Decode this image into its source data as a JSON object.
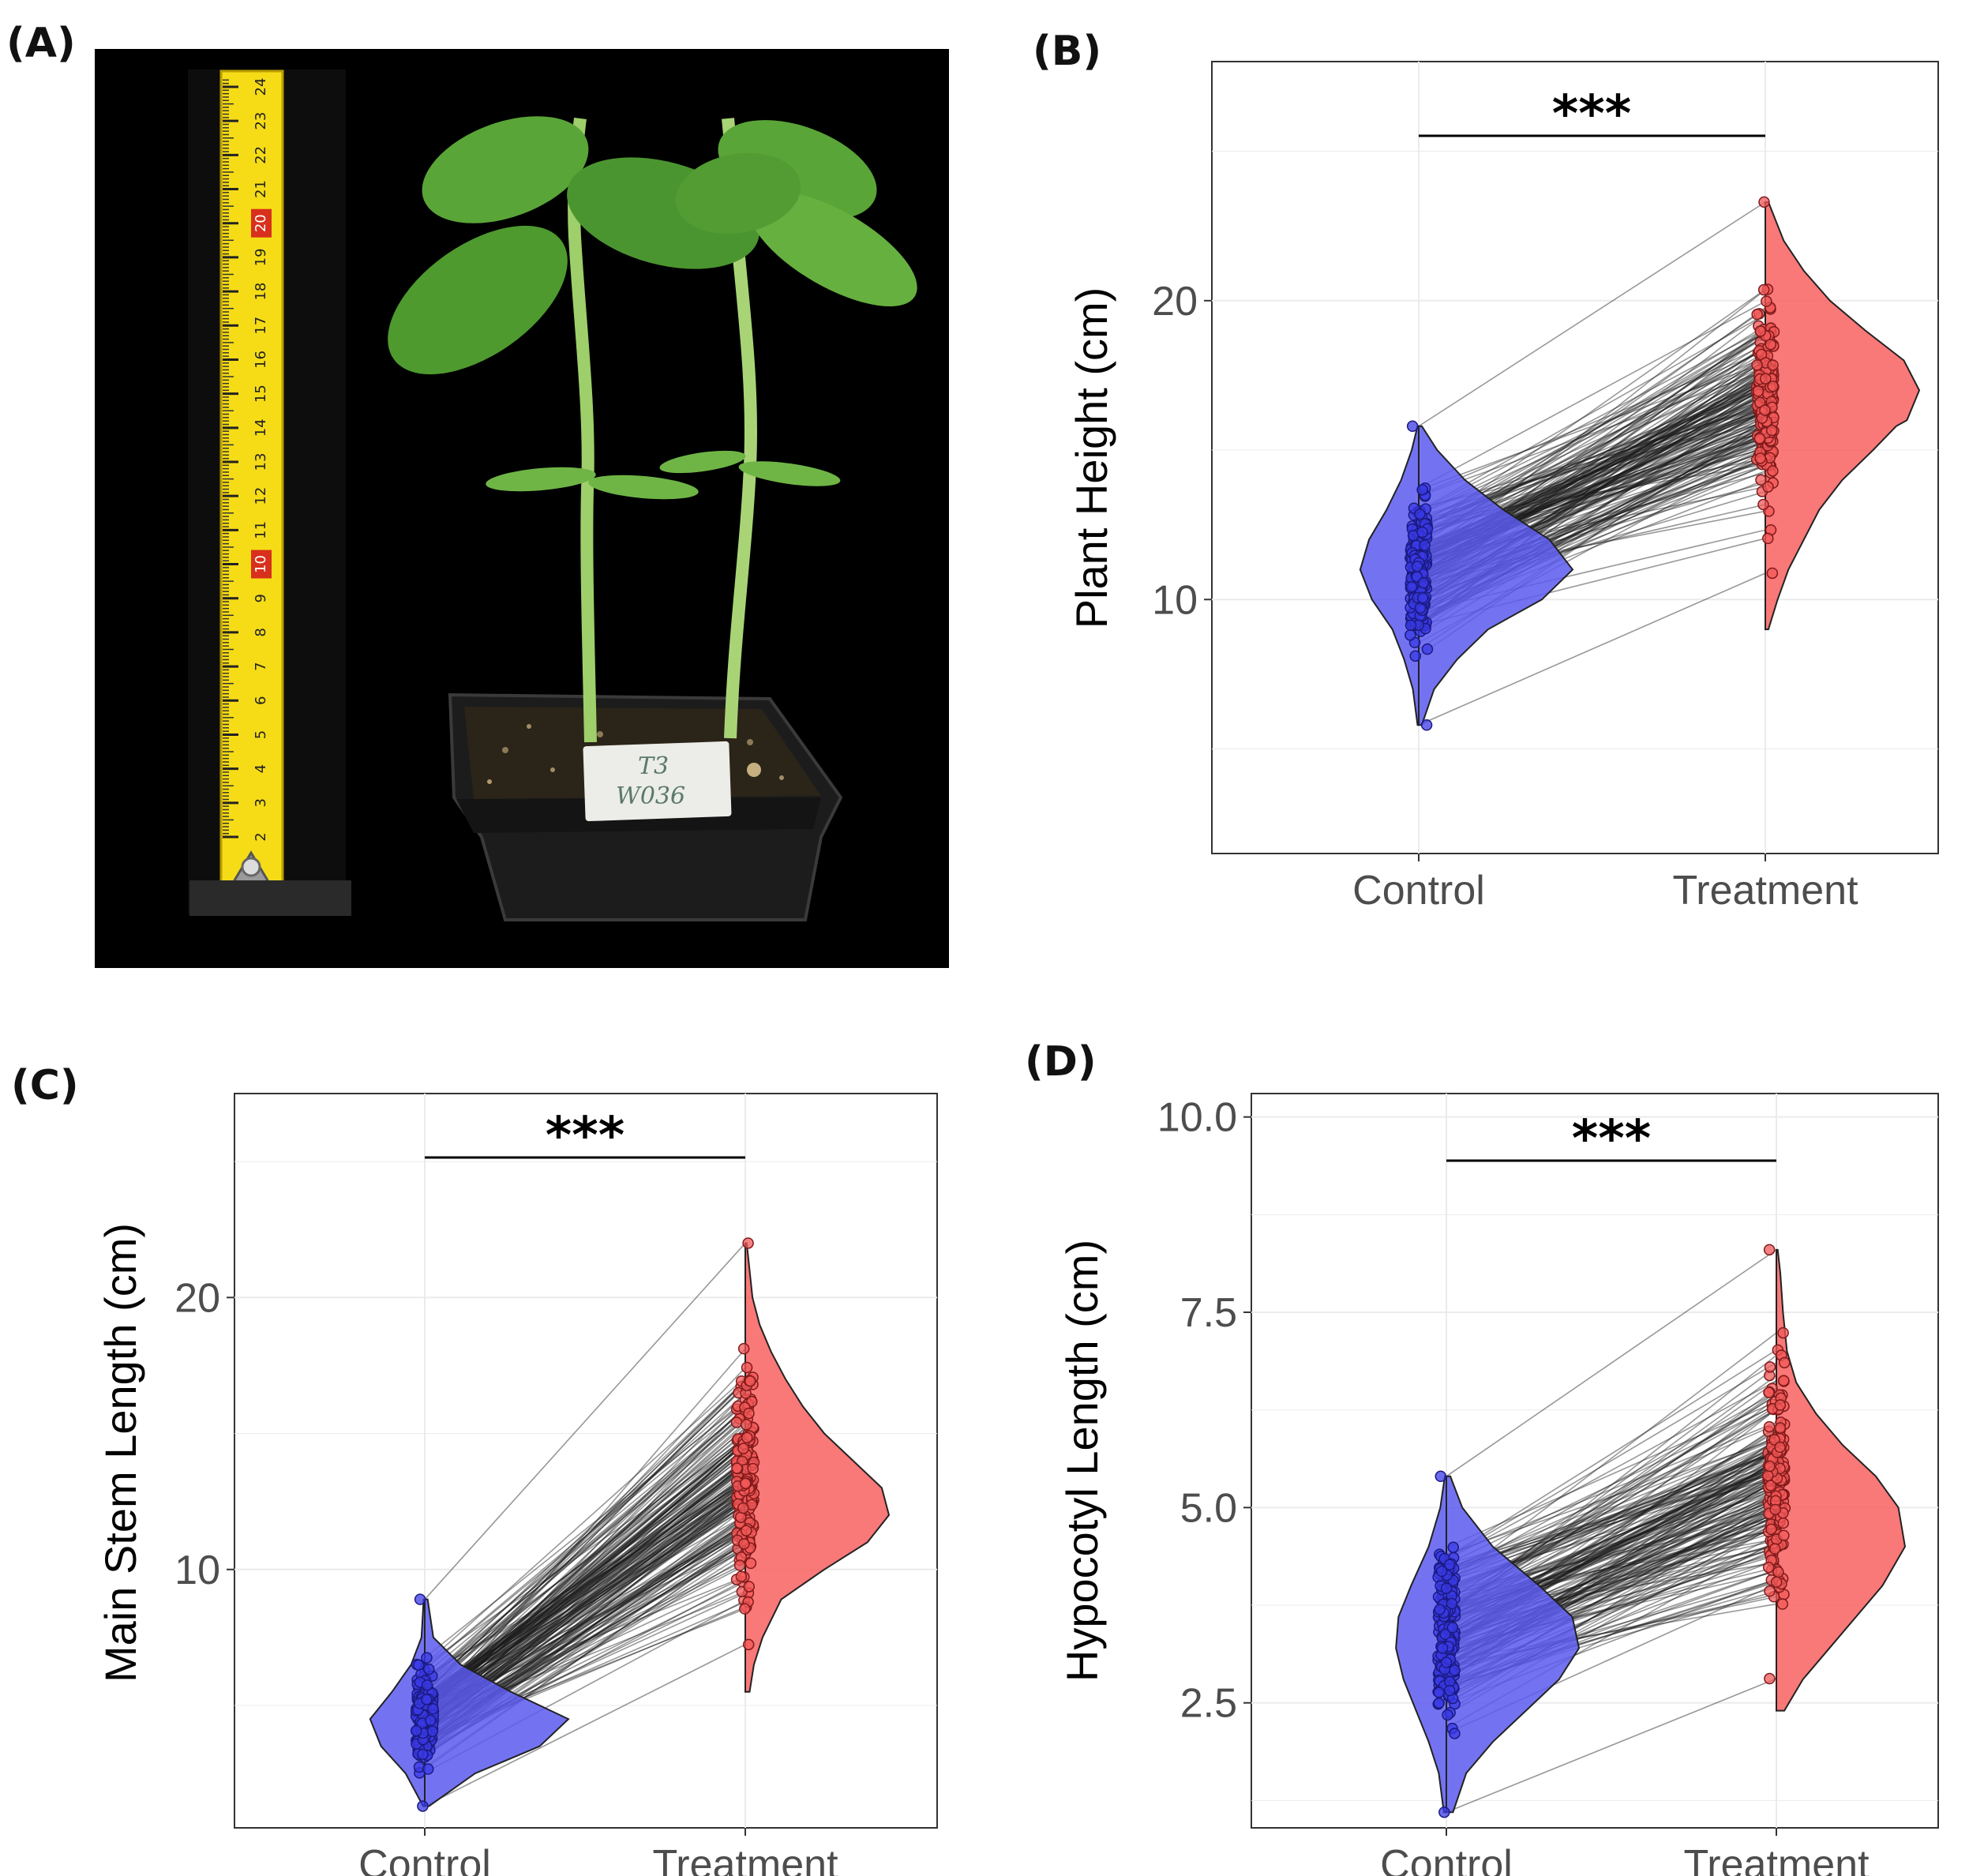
{
  "panels": {
    "a": {
      "label": "(A)"
    },
    "b": {
      "label": "(B)"
    },
    "c": {
      "label": "(C)"
    },
    "d": {
      "label": "(D)"
    }
  },
  "photo": {
    "pot_tag_line1": "T3",
    "pot_tag_line2": "W036",
    "ruler_numbers": [
      "2",
      "3",
      "4",
      "5",
      "6",
      "7",
      "8",
      "9",
      "10",
      "11",
      "12",
      "13",
      "14",
      "15",
      "16",
      "17",
      "18",
      "19",
      "20",
      "21",
      "22",
      "23",
      "24"
    ]
  },
  "colors": {
    "control": "#3a3ae6",
    "treatment": "#f25858",
    "control_fill": "#5a5af0",
    "treatment_fill": "#f86060",
    "line": "#222222"
  },
  "chart_data": [
    {
      "panel": "B",
      "type": "violin",
      "title": "",
      "xlabel": "",
      "ylabel": "Plant Height (cm)",
      "categories": [
        "Control",
        "Treatment"
      ],
      "ylim": [
        1.5,
        28
      ],
      "yticks": [
        10,
        20
      ],
      "grid": true,
      "significance": "***",
      "control_summary": {
        "min": 5.8,
        "max": 15.8,
        "median": 10.9
      },
      "treatment_summary": {
        "min": 9.5,
        "max": 23.3,
        "median": 17.2
      },
      "distribution_y": [
        5.8,
        7.0,
        8.0,
        9.0,
        10.0,
        11.0,
        12.0,
        13.0,
        14.0,
        15.0,
        15.8,
        16.0,
        17.0,
        18.0,
        19.0,
        20.0,
        21.0,
        22.0,
        23.3
      ],
      "series": [
        {
          "name": "Control",
          "density": [
            0.02,
            0.1,
            0.25,
            0.45,
            0.8,
            1.0,
            0.85,
            0.55,
            0.3,
            0.12,
            0.02,
            0,
            0,
            0,
            0,
            0,
            0,
            0,
            0
          ]
        },
        {
          "name": "Treatment",
          "density": [
            0,
            0,
            0,
            0.02,
            0.08,
            0.15,
            0.25,
            0.35,
            0.5,
            0.7,
            0.85,
            0.92,
            1.0,
            0.9,
            0.65,
            0.42,
            0.25,
            0.12,
            0.02
          ]
        }
      ]
    },
    {
      "panel": "C",
      "type": "violin",
      "title": "",
      "xlabel": "",
      "ylabel": "Main Stem Length (cm)",
      "categories": [
        "Control",
        "Treatment"
      ],
      "ylim": [
        0.5,
        27.5
      ],
      "yticks": [
        10,
        20
      ],
      "grid": true,
      "significance": "***",
      "control_summary": {
        "min": 1.3,
        "max": 8.9,
        "median": 4.6
      },
      "treatment_summary": {
        "min": 5.6,
        "max": 22.0,
        "median": 12.8
      },
      "distribution_y": [
        1.3,
        2.5,
        3.5,
        4.5,
        5.5,
        6.5,
        7.5,
        8.9,
        10.0,
        11.0,
        12.0,
        13.0,
        14.0,
        15.0,
        16.0,
        17.0,
        18.0,
        19.0,
        20.0,
        22.0
      ],
      "series": [
        {
          "name": "Control",
          "density": [
            0.03,
            0.35,
            0.8,
            1.0,
            0.6,
            0.25,
            0.06,
            0.02,
            0,
            0,
            0,
            0,
            0,
            0,
            0,
            0,
            0,
            0,
            0,
            0
          ]
        },
        {
          "name": "Treatment",
          "density": [
            0,
            0,
            0,
            0,
            0.03,
            0.06,
            0.12,
            0.25,
            0.55,
            0.85,
            1.0,
            0.95,
            0.75,
            0.55,
            0.4,
            0.28,
            0.18,
            0.1,
            0.05,
            0.01
          ]
        }
      ]
    },
    {
      "panel": "D",
      "type": "violin",
      "title": "",
      "xlabel": "",
      "ylabel": "Hypocotyl Length (cm)",
      "categories": [
        "Control",
        "Treatment"
      ],
      "ylim": [
        0.9,
        10.3
      ],
      "yticks": [
        2.5,
        5.0,
        7.5,
        10.0
      ],
      "ytick_labels": [
        "2.5",
        "5.0",
        "7.5",
        "10.0"
      ],
      "grid": true,
      "significance": "***",
      "control_summary": {
        "min": 1.1,
        "max": 5.4,
        "median": 3.4
      },
      "treatment_summary": {
        "min": 2.2,
        "max": 8.3,
        "median": 4.7
      },
      "distribution_y": [
        1.1,
        1.6,
        2.0,
        2.4,
        2.8,
        3.2,
        3.6,
        4.0,
        4.5,
        5.0,
        5.4,
        5.8,
        6.2,
        6.6,
        7.0,
        7.5,
        8.0,
        8.3
      ],
      "series": [
        {
          "name": "Control",
          "density": [
            0.05,
            0.15,
            0.35,
            0.6,
            0.85,
            1.0,
            0.95,
            0.7,
            0.35,
            0.12,
            0.03,
            0,
            0,
            0,
            0,
            0,
            0,
            0
          ]
        },
        {
          "name": "Treatment",
          "density": [
            0,
            0,
            0,
            0.06,
            0.2,
            0.4,
            0.6,
            0.8,
            0.97,
            0.92,
            0.75,
            0.5,
            0.3,
            0.15,
            0.08,
            0.05,
            0.03,
            0.01
          ]
        }
      ]
    }
  ]
}
